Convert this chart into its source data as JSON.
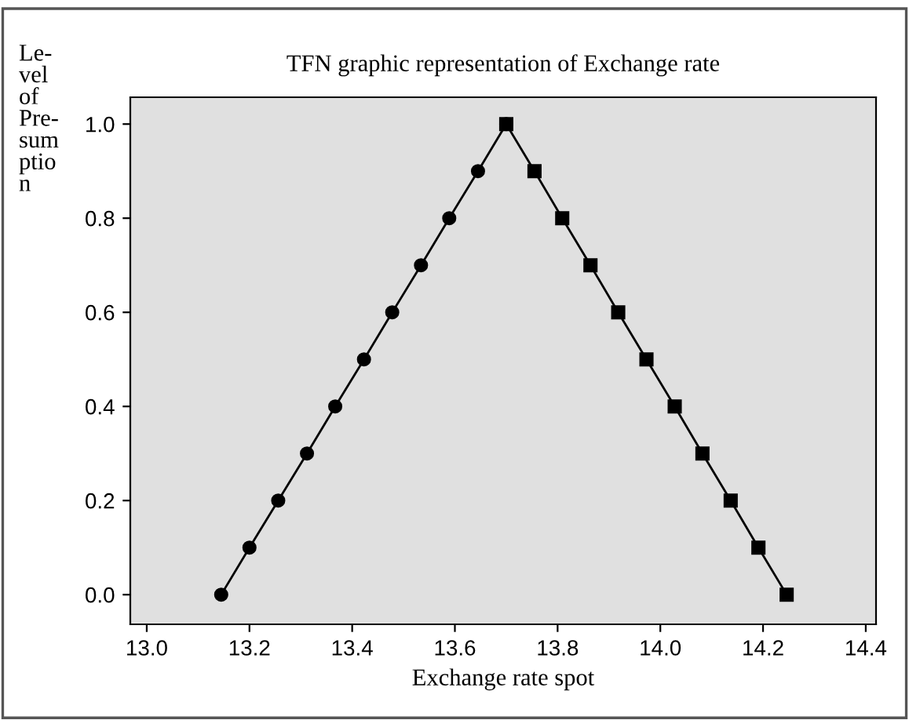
{
  "chart_data": {
    "type": "line",
    "title": "TFN graphic representation of Exchange rate",
    "xlabel": "Exchange rate spot",
    "ylabel": "Le-\nvel\nof\nPre-\nsum\nptio\nn",
    "series": [
      {
        "color": "#000000",
        "marker": "circle",
        "x": [
          13.145,
          13.2,
          13.256,
          13.312,
          13.367,
          13.423,
          13.478,
          13.534,
          13.589,
          13.645,
          13.7
        ],
        "values": [
          0.0,
          0.1,
          0.2,
          0.3,
          0.4,
          0.5,
          0.6,
          0.7,
          0.8,
          0.9,
          1.0
        ]
      },
      {
        "color": "#000000",
        "marker": "square",
        "x": [
          13.7,
          13.755,
          13.809,
          13.864,
          13.918,
          13.973,
          14.028,
          14.082,
          14.137,
          14.191,
          14.246
        ],
        "values": [
          1.0,
          0.9,
          0.8,
          0.7,
          0.6,
          0.5,
          0.4,
          0.3,
          0.2,
          0.1,
          0.0
        ]
      }
    ],
    "xlim": [
      12.968,
      14.42
    ],
    "ylim": [
      -0.063,
      1.057
    ],
    "xticks": [
      {
        "value": 13.0,
        "label": "13.0"
      },
      13.2,
      13.4,
      13.6,
      13.8,
      {
        "value": 14.0,
        "label": "14.0"
      },
      14.2,
      14.4
    ],
    "yticks": [
      {
        "value": 0,
        "label": "0.0"
      },
      0.2,
      0.4,
      0.6,
      0.8,
      {
        "value": 1,
        "label": "1.0"
      }
    ],
    "grid": false,
    "legend": false,
    "line_style": "solid"
  }
}
